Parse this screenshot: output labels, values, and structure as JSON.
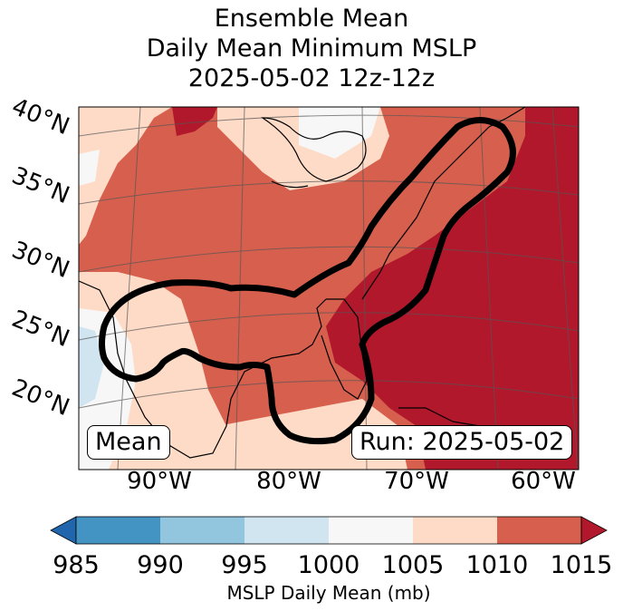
{
  "title": {
    "line1": "Ensemble Mean",
    "line2": "Daily Mean Minimum MSLP",
    "line3": "2025-05-02 12z-12z"
  },
  "map": {
    "lat_labels": [
      "40°N",
      "35°N",
      "30°N",
      "25°N",
      "20°N"
    ],
    "lon_labels": [
      "90°W",
      "80°W",
      "70°W",
      "60°W"
    ],
    "mean_badge": "Mean",
    "run_badge": "Run: 2025-05-02"
  },
  "colorbar": {
    "ticks": [
      "985",
      "990",
      "995",
      "1000",
      "1005",
      "1010",
      "1015"
    ],
    "label": "MSLP Daily Mean (mb)",
    "colors": {
      "below": "#2166ac",
      "b985_990": "#4393c3",
      "b990_995": "#92c5de",
      "b995_1000": "#d1e5f0",
      "b1000_1005": "#f7f7f7",
      "b1005_1010": "#fddbc7",
      "b1010_1015": "#d6604d",
      "above": "#b2182b"
    }
  }
}
